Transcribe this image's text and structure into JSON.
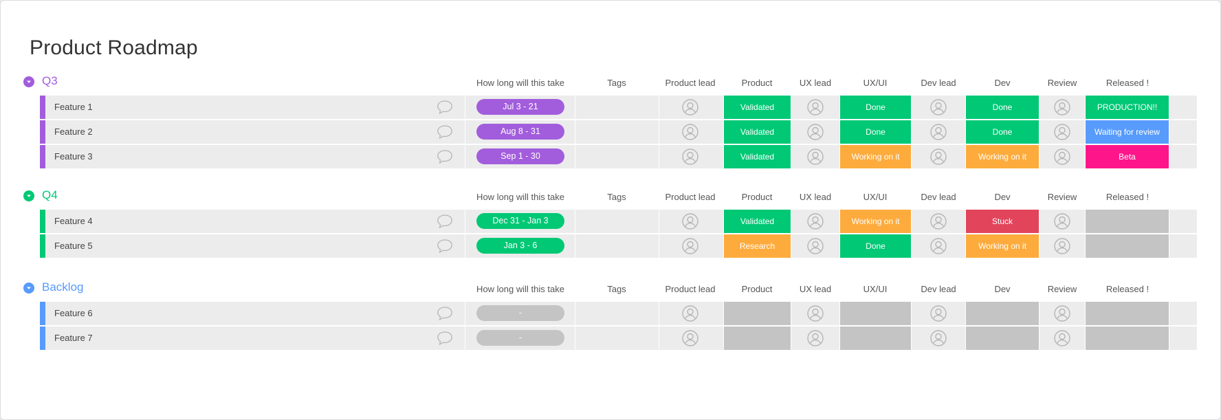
{
  "board": {
    "title": "Product Roadmap"
  },
  "columns": {
    "timeline": "How long will this take",
    "tags": "Tags",
    "product_lead": "Product lead",
    "product": "Product",
    "ux_lead": "UX lead",
    "ux_ui": "UX/UI",
    "dev_lead": "Dev lead",
    "dev": "Dev",
    "review": "Review",
    "released": "Released !"
  },
  "colors": {
    "q3": "#a25ddc",
    "q4": "#00c875",
    "backlog": "#579bfc",
    "validated": "#00c875",
    "done": "#00c875",
    "working": "#fdab3d",
    "research": "#fdab3d",
    "stuck": "#e2445c",
    "production": "#00c875",
    "waiting": "#579bfc",
    "beta": "#ff158a",
    "empty": "#c4c4c4"
  },
  "icons": {
    "toggle": "chevron-down-icon",
    "comment": "speech-bubble-icon",
    "person": "person-avatar-icon"
  },
  "groups": [
    {
      "name": "Q3",
      "rows": [
        {
          "name": "Feature 1",
          "timeline": "Jul 3 - 21",
          "product": "Validated",
          "ux_ui": "Done",
          "dev": "Done",
          "released": "PRODUCTION!!"
        },
        {
          "name": "Feature 2",
          "timeline": "Aug 8 - 31",
          "product": "Validated",
          "ux_ui": "Done",
          "dev": "Done",
          "released": "Waiting for review"
        },
        {
          "name": "Feature 3",
          "timeline": "Sep 1 - 30",
          "product": "Validated",
          "ux_ui": "Working on it",
          "dev": "Working on it",
          "released": "Beta"
        }
      ]
    },
    {
      "name": "Q4",
      "rows": [
        {
          "name": "Feature 4",
          "timeline": "Dec 31 - Jan 3",
          "product": "Validated",
          "ux_ui": "Working on it",
          "dev": "Stuck",
          "released": ""
        },
        {
          "name": "Feature 5",
          "timeline": "Jan 3 - 6",
          "product": "Research",
          "ux_ui": "Done",
          "dev": "Working on it",
          "released": ""
        }
      ]
    },
    {
      "name": "Backlog",
      "rows": [
        {
          "name": "Feature 6",
          "timeline": "-",
          "product": "",
          "ux_ui": "",
          "dev": "",
          "released": ""
        },
        {
          "name": "Feature 7",
          "timeline": "-",
          "product": "",
          "ux_ui": "",
          "dev": "",
          "released": ""
        }
      ]
    }
  ]
}
